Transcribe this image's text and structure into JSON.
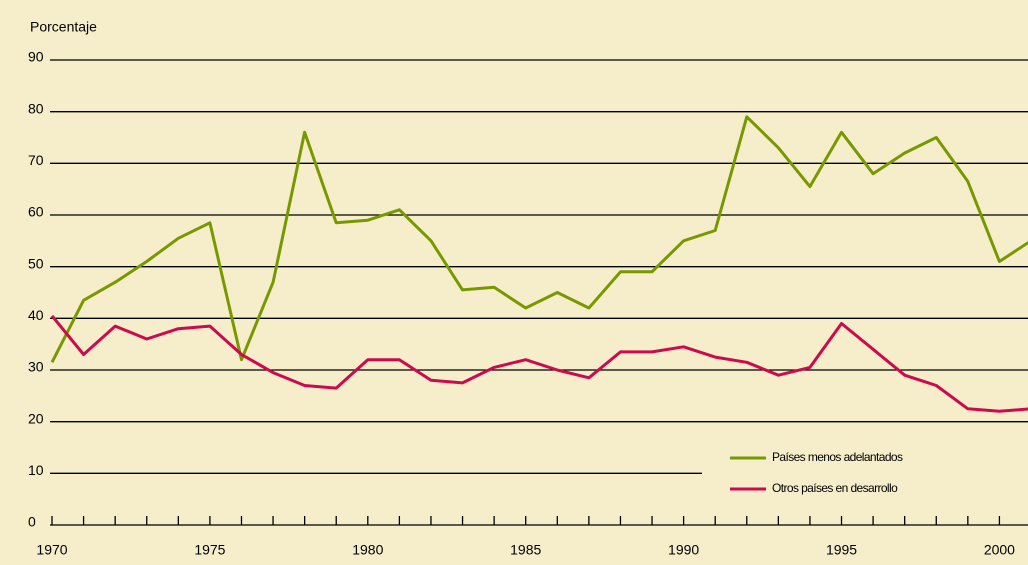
{
  "chart_data": {
    "type": "line",
    "y_label": "Porcentaje",
    "x": [
      1970,
      1971,
      1972,
      1973,
      1974,
      1975,
      1976,
      1977,
      1978,
      1979,
      1980,
      1981,
      1982,
      1983,
      1984,
      1985,
      1986,
      1987,
      1988,
      1989,
      1990,
      1991,
      1992,
      1993,
      1994,
      1995,
      1996,
      1997,
      1998,
      1999,
      2000,
      2001
    ],
    "series": [
      {
        "name": "Países menos adelantados",
        "color": "#789800",
        "values": [
          31.5,
          43.5,
          47,
          51,
          55.5,
          58.5,
          32,
          47,
          76,
          58.5,
          59,
          61,
          55,
          45.5,
          46,
          42,
          45,
          42,
          49,
          49,
          55,
          57,
          79,
          73,
          65.5,
          76,
          68,
          72,
          75,
          66.5,
          51,
          55
        ]
      },
      {
        "name": "Otros países en desarrollo",
        "color": "#cc0a4e",
        "values": [
          40.5,
          33,
          38.5,
          36,
          38,
          38.5,
          33,
          29.5,
          27,
          26.5,
          32,
          32,
          28,
          27.5,
          30.5,
          32,
          30,
          28.5,
          33.5,
          33.5,
          34.5,
          32.5,
          31.5,
          29,
          30.5,
          39,
          34,
          29,
          27,
          22.5,
          22,
          22.5
        ]
      }
    ],
    "xlim": [
      1970,
      2001
    ],
    "xticks": [
      1970,
      1975,
      1980,
      1985,
      1990,
      1995,
      2000
    ],
    "ylim": [
      0,
      90
    ],
    "yticks": [
      0,
      10,
      20,
      30,
      40,
      50,
      60,
      70,
      80,
      90
    ],
    "grid": true,
    "legend": "lower right"
  }
}
